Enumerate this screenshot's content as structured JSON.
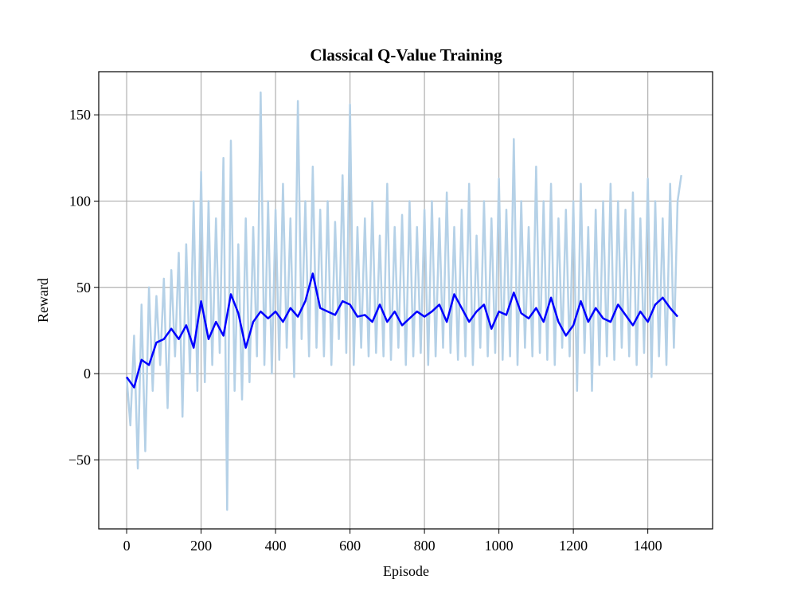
{
  "chart_data": {
    "type": "line",
    "title": "Classical Q-Value Training",
    "x_label": "Episode",
    "y_label": "Reward",
    "xlim": [
      -75,
      1574
    ],
    "ylim": [
      -90,
      175
    ],
    "xticks": [
      0,
      200,
      400,
      600,
      800,
      1000,
      1200,
      1400
    ],
    "yticks": [
      {
        "value": -50,
        "label": "−50"
      },
      0,
      50,
      100,
      150
    ],
    "grid": true,
    "series": [
      {
        "color": "#b5d1e7",
        "x": [
          0,
          10,
          20,
          30,
          40,
          50,
          60,
          70,
          80,
          90,
          100,
          110,
          120,
          130,
          140,
          150,
          160,
          170,
          180,
          190,
          200,
          210,
          220,
          230,
          240,
          250,
          260,
          270,
          280,
          290,
          300,
          310,
          320,
          330,
          340,
          350,
          360,
          370,
          380,
          390,
          400,
          410,
          420,
          430,
          440,
          450,
          460,
          470,
          480,
          490,
          500,
          510,
          520,
          530,
          540,
          550,
          560,
          570,
          580,
          590,
          600,
          610,
          620,
          630,
          640,
          650,
          660,
          670,
          680,
          690,
          700,
          710,
          720,
          730,
          740,
          750,
          760,
          770,
          780,
          790,
          800,
          810,
          820,
          830,
          840,
          850,
          860,
          870,
          880,
          890,
          900,
          910,
          920,
          930,
          940,
          950,
          960,
          970,
          980,
          990,
          1000,
          1010,
          1020,
          1030,
          1040,
          1050,
          1060,
          1070,
          1080,
          1090,
          1100,
          1110,
          1120,
          1130,
          1140,
          1150,
          1160,
          1170,
          1180,
          1190,
          1200,
          1210,
          1220,
          1230,
          1240,
          1250,
          1260,
          1270,
          1280,
          1290,
          1300,
          1310,
          1320,
          1330,
          1340,
          1350,
          1360,
          1370,
          1380,
          1390,
          1400,
          1410,
          1420,
          1430,
          1440,
          1450,
          1460,
          1470,
          1480,
          1490
        ],
        "values": [
          -2,
          -30,
          22,
          -55,
          40,
          -45,
          50,
          -10,
          45,
          5,
          55,
          -20,
          60,
          10,
          70,
          -25,
          75,
          0,
          100,
          -10,
          117,
          -5,
          100,
          5,
          90,
          12,
          125,
          -79,
          135,
          -10,
          75,
          -15,
          90,
          -5,
          85,
          10,
          163,
          5,
          100,
          0,
          95,
          8,
          110,
          15,
          90,
          -2,
          158,
          20,
          100,
          10,
          120,
          15,
          95,
          10,
          100,
          5,
          88,
          20,
          115,
          12,
          156,
          5,
          85,
          15,
          90,
          10,
          100,
          12,
          80,
          10,
          110,
          8,
          85,
          15,
          92,
          5,
          100,
          10,
          85,
          12,
          95,
          5,
          100,
          10,
          90,
          15,
          105,
          12,
          85,
          8,
          95,
          10,
          110,
          5,
          80,
          15,
          100,
          10,
          90,
          12,
          113,
          8,
          95,
          10,
          136,
          5,
          100,
          15,
          85,
          10,
          120,
          12,
          100,
          8,
          110,
          5,
          90,
          15,
          95,
          10,
          100,
          -10,
          110,
          12,
          85,
          -10,
          95,
          5,
          100,
          10,
          110,
          8,
          100,
          15,
          95,
          10,
          105,
          5,
          90,
          12,
          113,
          -2,
          100,
          10,
          90,
          5,
          110,
          15,
          100,
          115
        ]
      },
      {
        "color": "#0000ff",
        "x": [
          0,
          20,
          40,
          60,
          80,
          100,
          120,
          140,
          160,
          180,
          200,
          220,
          240,
          260,
          280,
          300,
          320,
          340,
          360,
          380,
          400,
          420,
          440,
          460,
          480,
          500,
          520,
          540,
          560,
          580,
          600,
          620,
          640,
          660,
          680,
          700,
          720,
          740,
          760,
          780,
          800,
          820,
          840,
          860,
          880,
          900,
          920,
          940,
          960,
          980,
          1000,
          1020,
          1040,
          1060,
          1080,
          1100,
          1120,
          1140,
          1160,
          1180,
          1200,
          1220,
          1240,
          1260,
          1280,
          1300,
          1320,
          1340,
          1360,
          1380,
          1400,
          1420,
          1440,
          1460,
          1480
        ],
        "values": [
          -2,
          -8,
          8,
          5,
          18,
          20,
          26,
          20,
          28,
          15,
          42,
          20,
          30,
          22,
          46,
          35,
          15,
          30,
          36,
          32,
          36,
          30,
          38,
          33,
          42,
          58,
          38,
          36,
          34,
          42,
          40,
          33,
          34,
          30,
          40,
          30,
          36,
          28,
          32,
          36,
          33,
          36,
          40,
          30,
          46,
          38,
          30,
          36,
          40,
          26,
          36,
          34,
          47,
          35,
          32,
          38,
          30,
          44,
          30,
          22,
          28,
          42,
          30,
          38,
          32,
          30,
          40,
          34,
          28,
          36,
          30,
          40,
          44,
          38,
          33
        ]
      }
    ]
  }
}
